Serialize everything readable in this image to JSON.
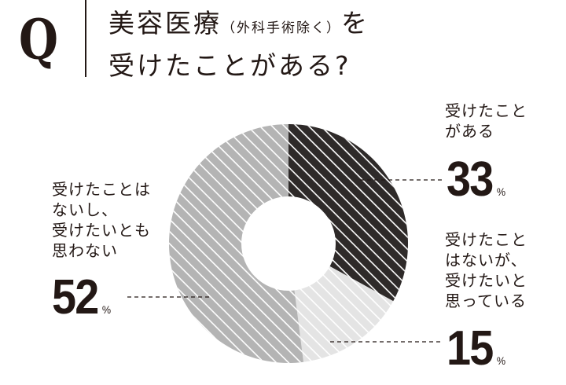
{
  "header": {
    "q_mark": "Q",
    "title_line1_main": "美容医療",
    "title_line1_paren": "（外科手術除く）",
    "title_line1_end": "を",
    "title_line2": "受けたことがある?"
  },
  "labels": {
    "yes": {
      "text": "受けたこと\nがある",
      "value": "33",
      "unit": "%"
    },
    "want": {
      "text": "受けたこと\nはないが、\n受けたいと\n思っている",
      "value": "15",
      "unit": "%"
    },
    "no": {
      "text": "受けたことは\nないし、\n受けたいとも\n思わない",
      "value": "52",
      "unit": "%"
    }
  },
  "colors": {
    "yes": "#2e2a29",
    "want": "#e4e4e4",
    "no": "#b4b4b4",
    "stripe": "#ffffff",
    "text": "#231815"
  },
  "chart_data": {
    "type": "pie",
    "subtype": "donut",
    "title": "美容医療（外科手術除く）を受けたことがある?",
    "categories": [
      "受けたことがある",
      "受けたことはないが、受けたいと思っている",
      "受けたことはないし、受けたいとも思わない"
    ],
    "values": [
      33,
      15,
      52
    ],
    "unit": "%",
    "start_angle": "top, clockwise",
    "legend": "none (callout labels with dashed leader lines)"
  }
}
